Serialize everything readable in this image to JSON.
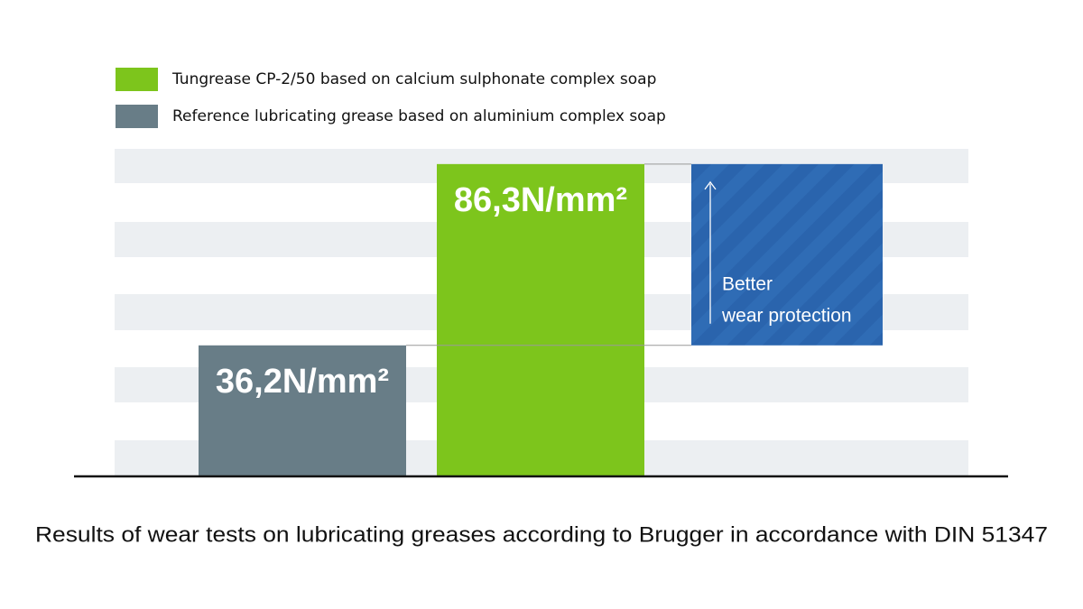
{
  "chart_data": {
    "type": "bar",
    "title": "Results of wear tests on lubricating greases according to Brugger in accordance with DIN 51347",
    "categories": [
      null,
      null
    ],
    "series": [
      {
        "name": "Tungrease CP-2/50 based on calcium sulphonate complex soap",
        "color": "#7dc51c",
        "values": [
          null,
          86.3
        ],
        "value_labels": [
          null,
          "86,3N/mm²"
        ]
      },
      {
        "name": "Reference lubricating grease based on aluminium complex soap",
        "color": "#687d87",
        "values": [
          36.2,
          null
        ],
        "value_labels": [
          "36,2N/mm²",
          null
        ]
      }
    ],
    "ylim": [
      0,
      90
    ],
    "annotation": [
      "Better",
      "wear protection"
    ]
  }
}
